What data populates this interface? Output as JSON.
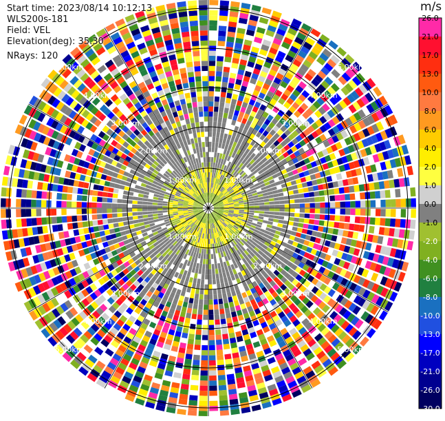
{
  "info": {
    "start_time": "Start time: 2023/08/14 10:12:13",
    "instrument": "WLS200s-181",
    "field": "Field: VEL",
    "elevation": "Elevation(deg): 35.30",
    "nrays": "NRays: 120"
  },
  "colorbar": {
    "unit": "m/s",
    "ticks": [
      "26.0",
      "21.0",
      "17.0",
      "13.0",
      "10.0",
      "8.0",
      "6.0",
      "4.0",
      "2.0",
      "1.0",
      "0.0",
      "-1.0",
      "-2.0",
      "-4.0",
      "-6.0",
      "-8.0",
      "-10.0",
      "-13.0",
      "-17.0",
      "-21.0",
      "-26.0",
      "-30.0"
    ],
    "colors": [
      "#ff2aa8",
      "#ff1030",
      "#ff2e10",
      "#ff5a10",
      "#ff7a40",
      "#ff9a20",
      "#ffcc00",
      "#ffee00",
      "#ffff40",
      "#d0d0d0",
      "#808080",
      "#a0c030",
      "#80b020",
      "#409020",
      "#208040",
      "#1a70c0",
      "#2050e0",
      "#0000ff",
      "#0000c0",
      "#000090",
      "#000060"
    ]
  },
  "ring_labels": [
    "1.00km",
    "2.00km",
    "3.00km",
    "4.00km",
    "5.00km"
  ],
  "nrays": 120
}
